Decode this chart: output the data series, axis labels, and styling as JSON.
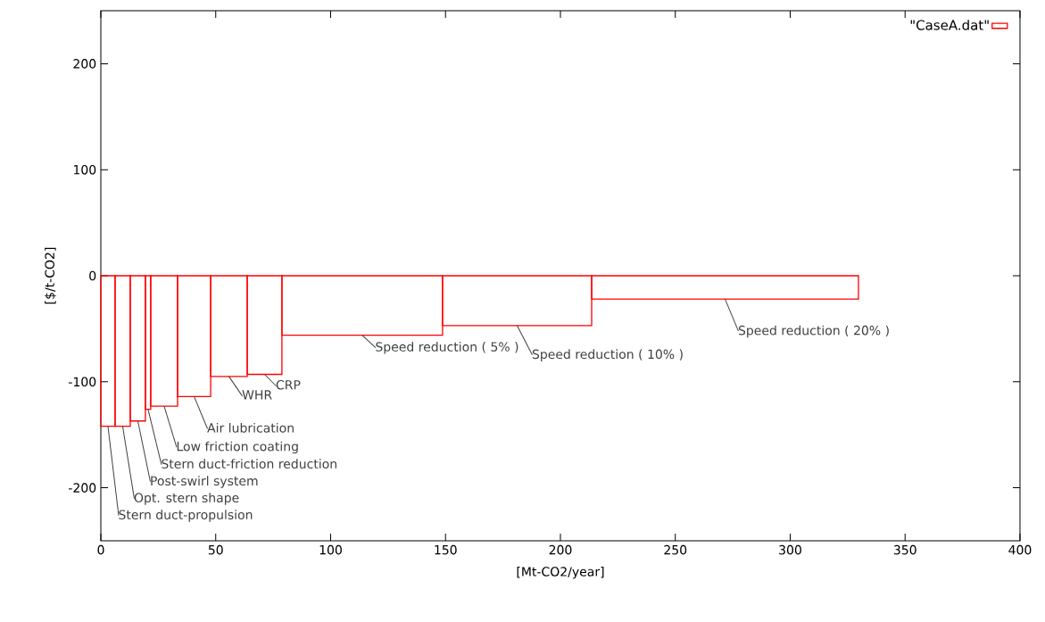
{
  "chart_data": {
    "type": "bar",
    "xlabel": "[Mt-CO2/year]",
    "ylabel": "[$/t-CO2]",
    "x": [
      3.1,
      9.5,
      16.1,
      20.55,
      27.55,
      40.6,
      55.75,
      71.25,
      113.75,
      181.15,
      271.65
    ],
    "series": [
      {
        "name": "\"CaseA.dat\"",
        "color": "#ff0000",
        "values": [
          -142,
          -142,
          -137,
          -126,
          -123,
          -114,
          -95,
          -93,
          -56,
          -47,
          -22
        ]
      }
    ],
    "xlim": [
      0,
      400
    ],
    "xticks": [
      0,
      50,
      100,
      150,
      200,
      250,
      300,
      350,
      400
    ],
    "ylim": [
      -250,
      250
    ],
    "yticks": [
      -200,
      -100,
      0,
      100,
      200
    ],
    "legend": "top right",
    "grid": false,
    "annotations": [
      {
        "text": "Stern duct-propulsion",
        "x": 3.1,
        "y": -142
      },
      {
        "text": "Opt. stern shape",
        "x": 9.5,
        "y": -142
      },
      {
        "text": "Post-swirl system",
        "x": 16.1,
        "y": -137
      },
      {
        "text": "Stern duct-friction reduction",
        "x": 20.55,
        "y": -126
      },
      {
        "text": "Low friction coating",
        "x": 27.55,
        "y": -123
      },
      {
        "text": "Air lubrication",
        "x": 40.6,
        "y": -114
      },
      {
        "text": "WHR",
        "x": 55.75,
        "y": -95
      },
      {
        "text": "CRP",
        "x": 71.25,
        "y": -93
      },
      {
        "text": "Speed reduction ( 5% )",
        "x": 113.75,
        "y": -56
      },
      {
        "text": "Speed reduction ( 10% )",
        "x": 181.15,
        "y": -47
      },
      {
        "text": "Speed reduction ( 20% )",
        "x": 271.65,
        "y": -22
      }
    ]
  }
}
